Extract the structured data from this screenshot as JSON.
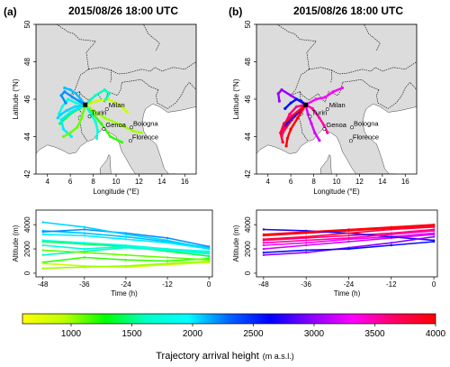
{
  "panels": [
    {
      "id": "a",
      "label": "(a)",
      "title": "2015/08/26 18:00 UTC",
      "map": {
        "xlabel": "Longitude (°E)",
        "ylabel": "Latitude (°N)",
        "xticks": [
          4,
          6,
          8,
          10,
          12,
          14,
          16
        ],
        "yticks": [
          42,
          44,
          46,
          48,
          50
        ],
        "xlim": [
          3,
          17
        ],
        "ylim": [
          42,
          50
        ],
        "cities": [
          {
            "name": "Turin",
            "lon": 7.68,
            "lat": 45.07
          },
          {
            "name": "Milan",
            "lon": 9.19,
            "lat": 45.46
          },
          {
            "name": "Genoa",
            "lon": 8.93,
            "lat": 44.41
          },
          {
            "name": "Bologna",
            "lon": 11.34,
            "lat": 44.49
          },
          {
            "name": "Florence",
            "lon": 11.25,
            "lat": 43.77
          }
        ],
        "site": {
          "lon": 7.3,
          "lat": 45.7
        }
      },
      "alt": {
        "xlabel": "Time (h)",
        "ylabel": "Altitude (m)",
        "xticks": [
          -48,
          -36,
          -24,
          -12,
          0
        ],
        "yticks": [
          0,
          2000,
          4000
        ],
        "xlim": [
          -50,
          1
        ],
        "ylim": [
          -300,
          5200
        ]
      }
    },
    {
      "id": "b",
      "label": "(b)",
      "title": "2015/08/26 18:00 UTC",
      "map": {
        "xlabel": "Longitude (°E)",
        "ylabel": "Latitude (°N)",
        "xticks": [
          4,
          6,
          8,
          10,
          12,
          14,
          16
        ],
        "yticks": [
          42,
          44,
          46,
          48,
          50
        ],
        "xlim": [
          3,
          17
        ],
        "ylim": [
          42,
          50
        ],
        "cities": [
          {
            "name": "Turin",
            "lon": 7.68,
            "lat": 45.07
          },
          {
            "name": "Milan",
            "lon": 9.19,
            "lat": 45.46
          },
          {
            "name": "Genoa",
            "lon": 8.93,
            "lat": 44.41
          },
          {
            "name": "Bologna",
            "lon": 11.34,
            "lat": 44.49
          },
          {
            "name": "Florence",
            "lon": 11.25,
            "lat": 43.77
          }
        ],
        "site": {
          "lon": 7.3,
          "lat": 45.7
        }
      },
      "alt": {
        "xlabel": "Time (h)",
        "ylabel": "Altitude (m)",
        "xticks": [
          -48,
          -36,
          -24,
          -12,
          0
        ],
        "yticks": [
          0,
          2000,
          4000
        ],
        "xlim": [
          -50,
          1
        ],
        "ylim": [
          -300,
          5200
        ]
      }
    }
  ],
  "colorbar": {
    "title": "Trajectory arrival height",
    "units": "(m a.s.l.)",
    "min": 600,
    "max": 4000,
    "ticks": [
      1000,
      1500,
      2000,
      2500,
      3000,
      3500,
      4000
    ],
    "colors": [
      "#ffff00",
      "#bfff00",
      "#00ff00",
      "#00ffc8",
      "#00ffff",
      "#0064ff",
      "#0000ff",
      "#8c00ff",
      "#ff00ff",
      "#ff0064",
      "#ff0000"
    ]
  },
  "colors": {
    "land": "#dcdcdc",
    "sea": "#ffffff",
    "border": "#000000",
    "site": "#000000"
  },
  "trajectories": {
    "a": [
      {
        "height": 1400,
        "lon": [
          7.3,
          6.8,
          6.2,
          5.6,
          5.1
        ],
        "lat": [
          45.7,
          45.5,
          45.3,
          45.0,
          44.7
        ],
        "t": [
          0,
          -12,
          -24,
          -36,
          -48
        ],
        "z": [
          1400,
          1800,
          2200,
          2400,
          2600
        ]
      },
      {
        "height": 1200,
        "lon": [
          7.3,
          8.0,
          8.7,
          9.5,
          10.5
        ],
        "lat": [
          45.7,
          45.2,
          44.7,
          44.0,
          43.7
        ],
        "t": [
          0,
          -12,
          -24,
          -36,
          -48
        ],
        "z": [
          1200,
          1000,
          1100,
          1300,
          900
        ]
      },
      {
        "height": 2100,
        "lon": [
          7.3,
          6.9,
          6.5,
          6.0,
          5.5
        ],
        "lat": [
          45.7,
          46.0,
          46.3,
          46.5,
          46.6
        ],
        "t": [
          0,
          -12,
          -24,
          -36,
          -48
        ],
        "z": [
          2100,
          2600,
          3000,
          3300,
          3500
        ]
      },
      {
        "height": 1800,
        "lon": [
          7.3,
          6.5,
          5.8,
          5.3,
          5.0
        ],
        "lat": [
          45.7,
          45.8,
          46.0,
          45.6,
          45.2
        ],
        "t": [
          0,
          -12,
          -24,
          -36,
          -48
        ],
        "z": [
          1800,
          2000,
          2300,
          2500,
          2700
        ]
      },
      {
        "height": 900,
        "lon": [
          7.3,
          8.3,
          9.3,
          10.3,
          11.0
        ],
        "lat": [
          45.7,
          45.9,
          46.0,
          45.7,
          45.3
        ],
        "t": [
          0,
          -12,
          -24,
          -36,
          -48
        ],
        "z": [
          900,
          700,
          500,
          600,
          800
        ]
      },
      {
        "height": 2000,
        "lon": [
          7.3,
          6.0,
          5.2,
          5.4,
          6.1
        ],
        "lat": [
          45.7,
          45.3,
          44.9,
          44.4,
          44.0
        ],
        "t": [
          0,
          -12,
          -24,
          -36,
          -48
        ],
        "z": [
          2000,
          2500,
          2800,
          3100,
          3200
        ]
      },
      {
        "height": 1600,
        "lon": [
          7.3,
          8.2,
          9.0,
          9.4,
          9.1
        ],
        "lat": [
          45.7,
          46.2,
          46.5,
          46.3,
          46.0
        ],
        "t": [
          0,
          -12,
          -24,
          -36,
          -48
        ],
        "z": [
          1600,
          1900,
          2100,
          1800,
          1500
        ]
      },
      {
        "height": 1100,
        "lon": [
          7.3,
          7.0,
          6.6,
          6.0,
          5.4
        ],
        "lat": [
          45.7,
          45.0,
          44.5,
          44.2,
          44.0
        ],
        "t": [
          0,
          -12,
          -24,
          -36,
          -48
        ],
        "z": [
          1100,
          1300,
          1500,
          1700,
          1900
        ]
      },
      {
        "height": 2200,
        "lon": [
          7.3,
          6.2,
          5.5,
          5.2,
          5.6
        ],
        "lat": [
          45.7,
          46.1,
          46.4,
          46.2,
          45.8
        ],
        "t": [
          0,
          -12,
          -24,
          -36,
          -48
        ],
        "z": [
          2200,
          2900,
          3300,
          3600,
          3400
        ]
      },
      {
        "height": 1000,
        "lon": [
          7.3,
          9.0,
          10.5,
          11.5,
          12.2
        ],
        "lat": [
          45.7,
          45.0,
          44.6,
          44.3,
          44.2
        ],
        "t": [
          0,
          -12,
          -24,
          -36,
          -48
        ],
        "z": [
          1000,
          800,
          600,
          500,
          400
        ]
      },
      {
        "height": 1700,
        "lon": [
          7.3,
          7.8,
          8.2,
          8.4,
          8.3
        ],
        "lat": [
          45.7,
          45.2,
          44.8,
          44.3,
          43.9
        ],
        "t": [
          0,
          -12,
          -24,
          -36,
          -48
        ],
        "z": [
          1700,
          1900,
          2200,
          2000,
          2300
        ]
      },
      {
        "height": 2050,
        "lon": [
          7.3,
          6.4,
          5.7,
          5.2,
          4.9
        ],
        "lat": [
          45.7,
          45.6,
          45.4,
          45.2,
          45.0
        ],
        "t": [
          0,
          -12,
          -24,
          -36,
          -48
        ],
        "z": [
          2050,
          2700,
          3200,
          3800,
          4200
        ]
      }
    ],
    "b": [
      {
        "height": 3900,
        "lon": [
          7.3,
          6.7,
          6.1,
          5.6,
          5.3
        ],
        "lat": [
          45.7,
          45.3,
          44.9,
          44.5,
          44.2
        ],
        "t": [
          0,
          -12,
          -24,
          -36,
          -48
        ],
        "z": [
          3900,
          3700,
          3500,
          3300,
          3100
        ]
      },
      {
        "height": 3600,
        "lon": [
          7.3,
          6.5,
          5.9,
          5.5,
          5.2
        ],
        "lat": [
          45.7,
          45.6,
          45.2,
          44.7,
          44.0
        ],
        "t": [
          0,
          -12,
          -24,
          -36,
          -48
        ],
        "z": [
          3600,
          3300,
          3100,
          2900,
          2700
        ]
      },
      {
        "height": 3300,
        "lon": [
          7.3,
          8.2,
          9.0,
          9.7,
          10.5
        ],
        "lat": [
          45.7,
          46.0,
          46.1,
          46.4,
          46.6
        ],
        "t": [
          0,
          -12,
          -24,
          -36,
          -48
        ],
        "z": [
          3300,
          3000,
          2800,
          2500,
          2300
        ]
      },
      {
        "height": 3200,
        "lon": [
          7.3,
          7.5,
          7.8,
          8.1,
          8.5
        ],
        "lat": [
          45.7,
          45.2,
          44.7,
          44.2,
          43.8
        ],
        "t": [
          0,
          -12,
          -24,
          -36,
          -48
        ],
        "z": [
          3200,
          2900,
          2600,
          2300,
          2000
        ]
      },
      {
        "height": 2700,
        "lon": [
          7.3,
          6.8,
          6.3,
          5.8,
          5.5
        ],
        "lat": [
          45.7,
          45.4,
          45.1,
          44.8,
          44.6
        ],
        "t": [
          0,
          -12,
          -24,
          -36,
          -48
        ],
        "z": [
          2700,
          3000,
          3300,
          3500,
          3600
        ]
      },
      {
        "height": 3800,
        "lon": [
          7.3,
          6.1,
          5.4,
          5.1,
          5.3
        ],
        "lat": [
          45.7,
          45.1,
          44.7,
          44.2,
          43.7
        ],
        "t": [
          0,
          -12,
          -24,
          -36,
          -48
        ],
        "z": [
          3800,
          3600,
          3300,
          3000,
          2800
        ]
      },
      {
        "height": 3000,
        "lon": [
          7.3,
          6.0,
          5.2,
          4.9,
          5.0
        ],
        "lat": [
          45.7,
          46.2,
          46.5,
          46.3,
          45.9
        ],
        "t": [
          0,
          -12,
          -24,
          -36,
          -48
        ],
        "z": [
          3000,
          2500,
          2100,
          1700,
          1500
        ]
      },
      {
        "height": 4000,
        "lon": [
          7.3,
          6.6,
          6.0,
          5.7,
          5.6
        ],
        "lat": [
          45.7,
          45.0,
          44.4,
          43.9,
          43.5
        ],
        "t": [
          0,
          -12,
          -24,
          -36,
          -48
        ],
        "z": [
          4000,
          3800,
          3600,
          3400,
          3200
        ]
      },
      {
        "height": 3500,
        "lon": [
          7.3,
          7.9,
          8.5,
          8.9,
          9.2
        ],
        "lat": [
          45.7,
          45.5,
          45.0,
          44.6,
          44.2
        ],
        "t": [
          0,
          -12,
          -24,
          -36,
          -48
        ],
        "z": [
          3500,
          3200,
          2900,
          2700,
          2500
        ]
      },
      {
        "height": 2600,
        "lon": [
          7.3,
          6.9,
          6.5,
          6.0,
          5.5
        ],
        "lat": [
          45.7,
          45.9,
          46.0,
          45.8,
          45.5
        ],
        "t": [
          0,
          -12,
          -24,
          -36,
          -48
        ],
        "z": [
          2600,
          2300,
          2000,
          1900,
          1700
        ]
      }
    ]
  }
}
